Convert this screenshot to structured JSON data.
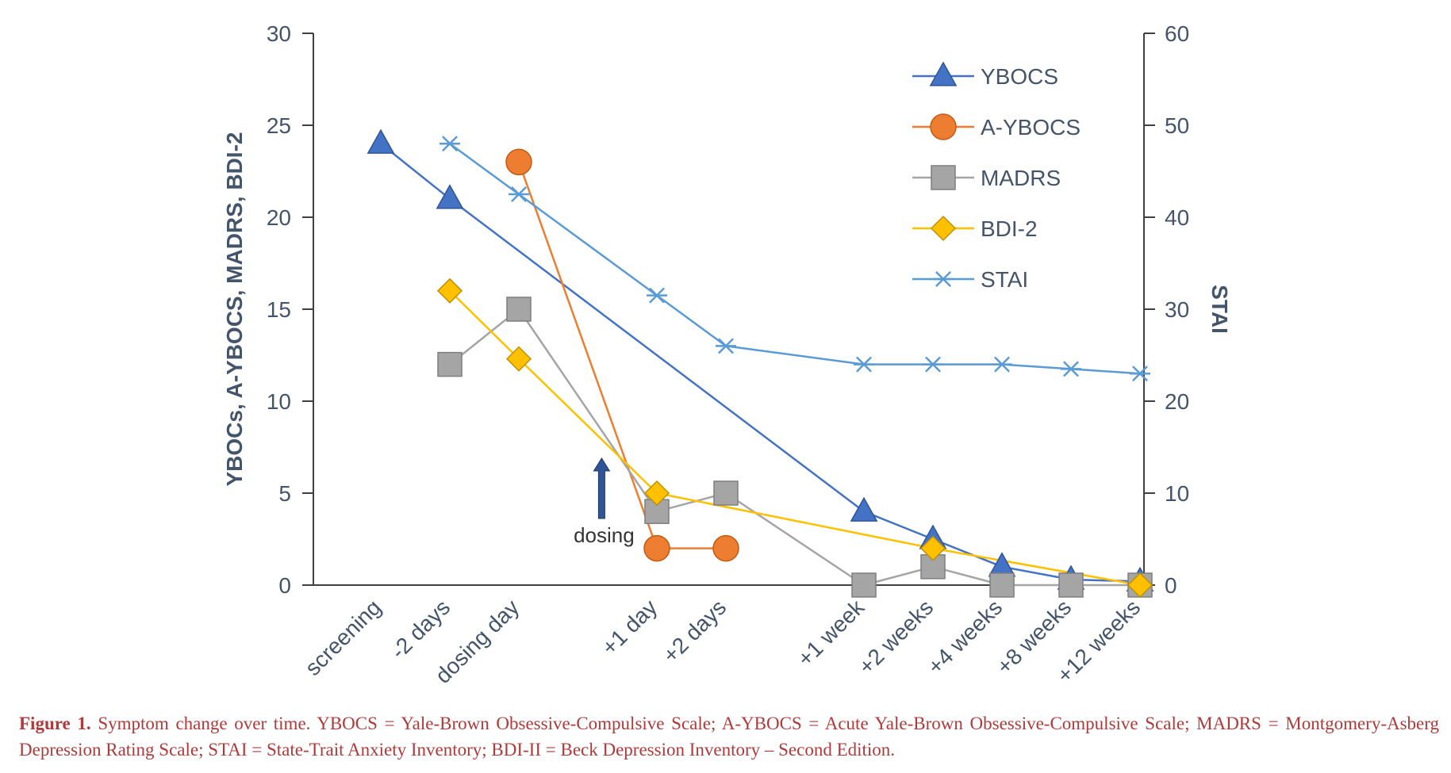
{
  "chart_data": {
    "type": "line",
    "categories": [
      "screening",
      "-2 days",
      "dosing day",
      "+1 day",
      "+2 days",
      "+1 week",
      "+2 weeks",
      "+4 weeks",
      "+8 weeks",
      "+12 weeks"
    ],
    "x_positions": [
      0,
      1,
      2,
      4,
      5,
      7,
      8,
      9,
      10,
      11
    ],
    "ylabel": "YBOCs, A-YBOCS, MADRS, BDI-2",
    "y2label": "STAI",
    "ylim": [
      0,
      30
    ],
    "y2lim": [
      0,
      60
    ],
    "yticks": [
      "0",
      "5",
      "10",
      "15",
      "20",
      "25",
      "30"
    ],
    "y2ticks": [
      "0",
      "10",
      "20",
      "30",
      "40",
      "50",
      "60"
    ],
    "legend_position": "top-right",
    "series": [
      {
        "name": "YBOCS",
        "axis": "left",
        "color": "#4472c4",
        "marker": "triangle",
        "values": [
          24,
          21,
          null,
          null,
          null,
          4,
          2.5,
          1,
          0.3,
          0.2
        ]
      },
      {
        "name": "A-YBOCS",
        "axis": "left",
        "color": "#ed7d31",
        "marker": "circle",
        "values": [
          null,
          null,
          23,
          2,
          2,
          null,
          null,
          null,
          null,
          null
        ]
      },
      {
        "name": "MADRS",
        "axis": "left",
        "color": "#a5a5a5",
        "marker": "square",
        "values": [
          null,
          12,
          15,
          4,
          5,
          0,
          1,
          0,
          0,
          0
        ]
      },
      {
        "name": "BDI-2",
        "axis": "left",
        "color": "#ffc000",
        "marker": "diamond",
        "values": [
          null,
          16,
          12.3,
          5,
          null,
          null,
          2,
          null,
          null,
          0
        ]
      },
      {
        "name": "STAI",
        "axis": "right",
        "color": "#5b9bd5",
        "marker": "star",
        "values": [
          null,
          48,
          42.5,
          31.5,
          26,
          24,
          24,
          24,
          23.5,
          23
        ]
      }
    ],
    "annotation": {
      "text": "dosing",
      "arrow": "up",
      "color": "#2f5597",
      "x_position": 3.2
    }
  },
  "caption": {
    "label": "Figure 1.",
    "text": "Symptom change over time. YBOCS = Yale-Brown Obsessive-Compulsive Scale; A-YBOCS = Acute Yale-Brown Obsessive-Compulsive Scale; MADRS = Montgomery-Asberg Depression Rating Scale; STAI = State-Trait Anxiety Inventory; BDI-II = Beck Depression Inventory – Second Edition."
  }
}
